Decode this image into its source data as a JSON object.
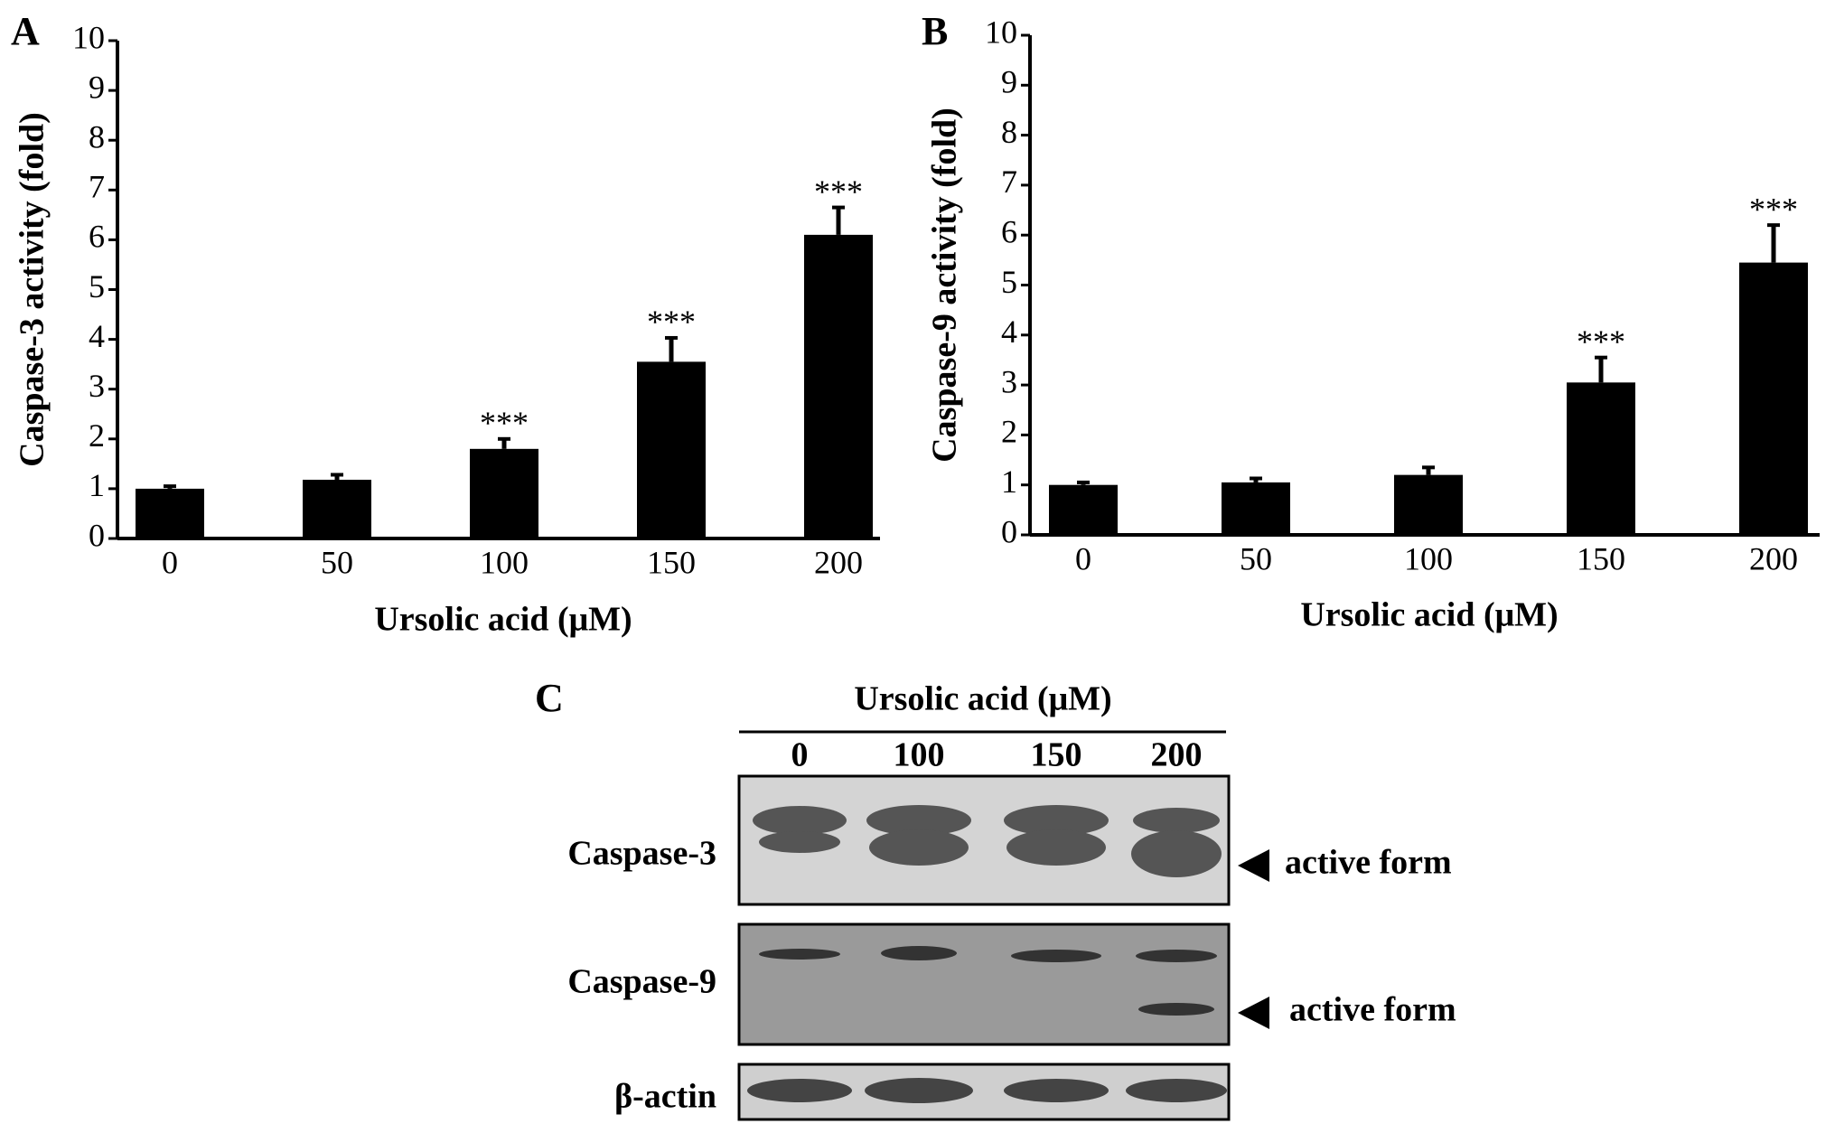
{
  "chart_data": [
    {
      "type": "bar",
      "panel_label": "A",
      "ylabel": "Caspase-3 activity (fold)",
      "xlabel": "Ursolic acid (μM)",
      "categories": [
        "0",
        "50",
        "100",
        "150",
        "200"
      ],
      "values": [
        1.0,
        1.18,
        1.8,
        3.55,
        6.1
      ],
      "errors": [
        0.05,
        0.1,
        0.2,
        0.48,
        0.55
      ],
      "annotations": [
        null,
        null,
        "***",
        "***",
        "***"
      ],
      "color": "#000000",
      "ylim": [
        0,
        10
      ],
      "yticks": [
        0,
        1,
        2,
        3,
        4,
        5,
        6,
        7,
        8,
        9,
        10
      ]
    },
    {
      "type": "bar",
      "panel_label": "B",
      "ylabel": "Caspase-9 activity (fold)",
      "xlabel": "Ursolic acid (μM)",
      "categories": [
        "0",
        "50",
        "100",
        "150",
        "200"
      ],
      "values": [
        1.0,
        1.05,
        1.2,
        3.05,
        5.45
      ],
      "errors": [
        0.05,
        0.08,
        0.15,
        0.5,
        0.75
      ],
      "annotations": [
        null,
        null,
        null,
        "***",
        "***"
      ],
      "color": "#000000",
      "ylim": [
        0,
        10
      ],
      "yticks": [
        0,
        1,
        2,
        3,
        4,
        5,
        6,
        7,
        8,
        9,
        10
      ]
    }
  ],
  "blot": {
    "panel_label": "C",
    "header": "Ursolic acid (μM)",
    "lanes": [
      "0",
      "100",
      "150",
      "200"
    ],
    "rows": [
      "Caspase-3",
      "Caspase-9",
      "β-actin"
    ],
    "annotations": [
      "active form",
      "active form"
    ]
  }
}
